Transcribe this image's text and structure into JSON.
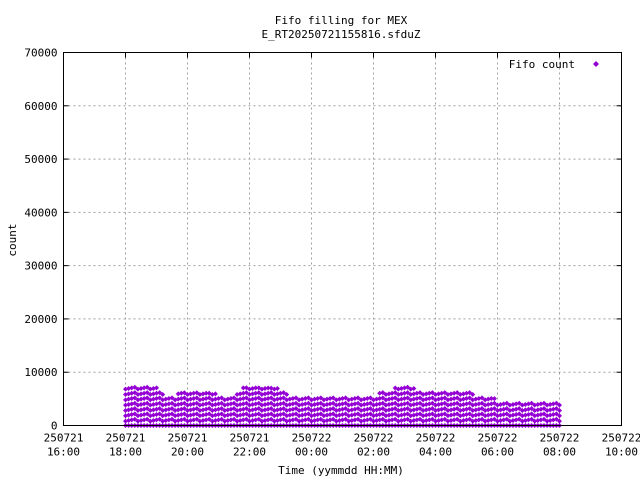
{
  "chart_data": {
    "type": "scatter",
    "title": "Fifo filling for MEX",
    "subtitle": "E_RT20250721155816.sfduZ",
    "xlabel": "Time (yymmdd HH:MM)",
    "ylabel": "count",
    "xlim_hours": [
      16,
      34
    ],
    "ylim": [
      0,
      70000
    ],
    "y_ticks": [
      "0",
      "10000",
      "20000",
      "30000",
      "40000",
      "50000",
      "60000",
      "70000"
    ],
    "x_ticks": [
      {
        "date": "250721",
        "time": "16:00"
      },
      {
        "date": "250721",
        "time": "18:00"
      },
      {
        "date": "250721",
        "time": "20:00"
      },
      {
        "date": "250721",
        "time": "22:00"
      },
      {
        "date": "250722",
        "time": "00:00"
      },
      {
        "date": "250722",
        "time": "02:00"
      },
      {
        "date": "250722",
        "time": "04:00"
      },
      {
        "date": "250722",
        "time": "06:00"
      },
      {
        "date": "250722",
        "time": "08:00"
      },
      {
        "date": "250722",
        "time": "10:00"
      }
    ],
    "grid": true,
    "legend_position": "top-right",
    "series": [
      {
        "name": "Fifo count",
        "color": "#9400d3",
        "marker": "diamond",
        "time_range": [
          "250721 18:00",
          "250722 08:00"
        ],
        "envelope": [
          [
            "250721 18:00",
            7400
          ],
          [
            "250721 19:00",
            7100
          ],
          [
            "250721 19:15",
            5800
          ],
          [
            "250721 20:00",
            6200
          ],
          [
            "250721 21:00",
            6000
          ],
          [
            "250721 21:30",
            5600
          ],
          [
            "250721 21:45",
            7100
          ],
          [
            "250721 23:00",
            7000
          ],
          [
            "250721 23:15",
            6000
          ],
          [
            "250722 00:00",
            5700
          ],
          [
            "250722 01:00",
            5600
          ],
          [
            "250722 02:00",
            5800
          ],
          [
            "250722 02:30",
            6600
          ],
          [
            "250722 03:00",
            7700
          ],
          [
            "250722 03:30",
            6800
          ],
          [
            "250722 05:00",
            6500
          ],
          [
            "250722 05:30",
            5600
          ],
          [
            "250722 06:00",
            4900
          ],
          [
            "250722 07:00",
            4800
          ],
          [
            "250722 08:00",
            4900
          ]
        ],
        "level_step": 1000
      }
    ]
  }
}
